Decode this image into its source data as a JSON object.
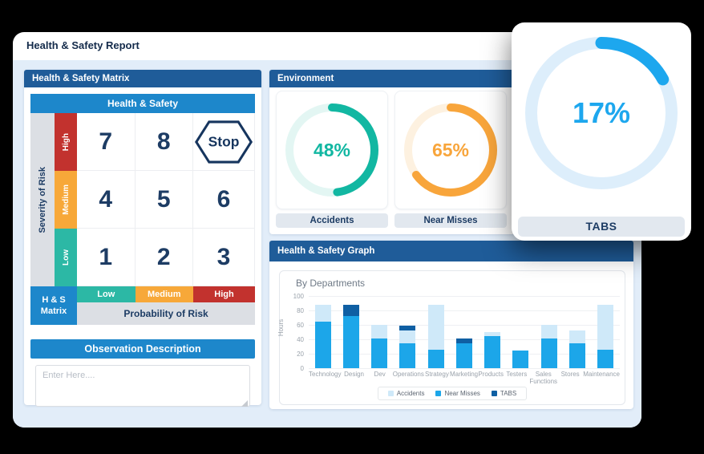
{
  "window": {
    "title": "Health & Safety Report"
  },
  "matrix_panel": {
    "header": "Health & Safety Matrix",
    "table_header": "Health & Safety",
    "severity_label": "Severity of Risk",
    "probability_label": "Probability of Risk",
    "corner_label": "H & S Matrix",
    "stop_label": "Stop",
    "rows": [
      {
        "severity": "High",
        "color": "#c2322e",
        "cells": [
          "7",
          "8",
          ""
        ]
      },
      {
        "severity": "Medium",
        "color": "#f7a839",
        "cells": [
          "4",
          "5",
          "6"
        ]
      },
      {
        "severity": "Low",
        "color": "#2cb8a5",
        "cells": [
          "1",
          "2",
          "3"
        ]
      }
    ],
    "probability_levels": [
      {
        "label": "Low",
        "color": "#2cb8a5"
      },
      {
        "label": "Medium",
        "color": "#f7a839"
      },
      {
        "label": "High",
        "color": "#c2322e"
      }
    ]
  },
  "observation": {
    "header": "Observation Description",
    "placeholder": "Enter Here...."
  },
  "environment": {
    "header": "Environment",
    "gauges": [
      {
        "label": "Accidents",
        "percent": 48,
        "value_text": "48%",
        "color": "#12b7a2",
        "track": "#e3f6f3"
      },
      {
        "label": "Near Misses",
        "percent": 65,
        "value_text": "65%",
        "color": "#f8a53b",
        "track": "#fdf1e0"
      }
    ]
  },
  "overlay_card": {
    "label": "TABS",
    "percent": 17,
    "value_text": "17%",
    "color": "#1da7ee",
    "track": "#ddeefb"
  },
  "graph": {
    "header": "Health & Safety Graph",
    "chart_data": {
      "type": "bar",
      "stacked": true,
      "title": "By Departments",
      "xlabel": "",
      "ylabel": "Hours",
      "ylim": [
        0,
        100
      ],
      "yticks": [
        0,
        20,
        40,
        60,
        80,
        100
      ],
      "grid": true,
      "legend_position": "bottom",
      "categories": [
        "Technology",
        "Design",
        "Dev",
        "Operations",
        "Strategy",
        "Marketing",
        "Products",
        "Testers",
        "Sales Functions",
        "Stores",
        "Maintenance"
      ],
      "series": [
        {
          "name": "Accidents",
          "color": "#cfe9f9",
          "values": [
            24,
            0,
            19,
            17,
            62,
            0,
            5,
            0,
            19,
            17,
            62
          ]
        },
        {
          "name": "Near Misses",
          "color": "#1ca6e9",
          "values": [
            64,
            72,
            41,
            35,
            26,
            34,
            45,
            24,
            41,
            35,
            26
          ]
        },
        {
          "name": "TABS",
          "color": "#0f5fa3",
          "values": [
            0,
            16,
            0,
            7,
            0,
            7,
            0,
            0,
            0,
            0,
            0
          ]
        }
      ],
      "stack_order": [
        "Near Misses",
        "Accidents",
        "TABS"
      ]
    }
  }
}
